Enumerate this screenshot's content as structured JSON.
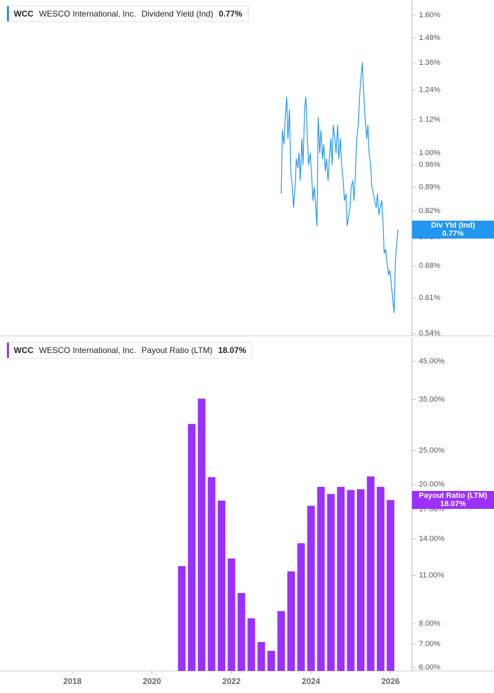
{
  "chart_data": [
    {
      "type": "line",
      "legend": {
        "ticker": "WCC",
        "company": "WESCO International, Inc.",
        "metric": "Dividend Yield (Ind)",
        "value": "0.77%"
      },
      "badge": {
        "label": "Div Yld (Ind)",
        "value": "0.77%"
      },
      "log_scale": true,
      "xlim": [
        2016.18,
        2026.54
      ],
      "ylim": [
        0.536,
        1.685
      ],
      "yticks": [
        {
          "value": 1.6,
          "label": "1.60%"
        },
        {
          "value": 1.48,
          "label": "1.48%"
        },
        {
          "value": 1.36,
          "label": "1.36%"
        },
        {
          "value": 1.24,
          "label": "1.24%"
        },
        {
          "value": 1.12,
          "label": "1.12%"
        },
        {
          "value": 1.0,
          "label": "1.00%"
        },
        {
          "value": 0.96,
          "label": "0.96%"
        },
        {
          "value": 0.89,
          "label": "0.89%"
        },
        {
          "value": 0.82,
          "label": "0.82%"
        },
        {
          "value": 0.75,
          "label": "0.75%"
        },
        {
          "value": 0.68,
          "label": "0.68%"
        },
        {
          "value": 0.61,
          "label": "0.61%"
        },
        {
          "value": 0.54,
          "label": "0.54%"
        }
      ],
      "x": [
        2023.25,
        2023.28,
        2023.32,
        2023.35,
        2023.39,
        2023.42,
        2023.46,
        2023.49,
        2023.53,
        2023.56,
        2023.6,
        2023.63,
        2023.67,
        2023.7,
        2023.73,
        2023.77,
        2023.8,
        2023.84,
        2023.87,
        2023.91,
        2023.94,
        2023.98,
        2024.01,
        2024.05,
        2024.08,
        2024.12,
        2024.15,
        2024.18,
        2024.22,
        2024.25,
        2024.29,
        2024.32,
        2024.36,
        2024.39,
        2024.43,
        2024.46,
        2024.5,
        2024.53,
        2024.56,
        2024.6,
        2024.63,
        2024.67,
        2024.7,
        2024.74,
        2024.77,
        2024.81,
        2024.84,
        2024.88,
        2024.91,
        2024.95,
        2024.98,
        2025.01,
        2025.05,
        2025.08,
        2025.12,
        2025.15,
        2025.19,
        2025.22,
        2025.26,
        2025.29,
        2025.33,
        2025.36,
        2025.4,
        2025.43,
        2025.46,
        2025.5,
        2025.53,
        2025.57,
        2025.6,
        2025.64,
        2025.67,
        2025.71,
        2025.74,
        2025.78,
        2025.81,
        2025.84,
        2025.88,
        2025.91,
        2025.95,
        2025.98,
        2026.02,
        2026.05,
        2026.09,
        2026.12,
        2026.16,
        2026.19
      ],
      "series": [
        {
          "name": "Div Yld (Ind)",
          "color": "#2196f3",
          "values": [
            0.87,
            1.08,
            1.03,
            1.12,
            1.21,
            1.05,
            1.16,
            0.94,
            0.89,
            0.83,
            0.89,
            0.98,
            0.95,
            1.0,
            0.91,
            1.05,
            0.96,
            1.16,
            1.21,
            1.05,
            0.96,
            1.0,
            0.94,
            0.85,
            0.89,
            0.83,
            0.78,
            1.13,
            1.0,
            1.08,
            0.98,
            1.03,
            0.94,
            0.98,
            0.91,
            0.98,
            1.05,
            0.96,
            1.1,
            1.05,
            1.0,
            1.1,
            0.98,
            1.05,
            0.96,
            0.91,
            0.85,
            0.87,
            0.78,
            0.81,
            0.83,
            0.89,
            0.91,
            0.85,
            0.94,
            1.05,
            1.1,
            1.21,
            1.3,
            1.36,
            1.21,
            1.13,
            1.05,
            1.1,
            1.0,
            0.96,
            0.89,
            0.87,
            0.85,
            0.83,
            0.87,
            0.81,
            0.83,
            0.85,
            0.79,
            0.71,
            0.72,
            0.69,
            0.66,
            0.67,
            0.64,
            0.61,
            0.58,
            0.69,
            0.74,
            0.77
          ]
        }
      ]
    },
    {
      "type": "bar",
      "legend": {
        "ticker": "WCC",
        "company": "WESCO International, Inc.",
        "metric": "Payout Ratio (LTM)",
        "value": "18.07%"
      },
      "badge": {
        "label": "Payout Ratio (LTM)",
        "value": "18.07%"
      },
      "log_scale": true,
      "xlim": [
        2016.18,
        2026.54
      ],
      "xticks": [
        2018,
        2020,
        2022,
        2024,
        2026
      ],
      "ylim": [
        5.87,
        52.5
      ],
      "yticks": [
        {
          "value": 45,
          "label": "45.00%"
        },
        {
          "value": 35,
          "label": "35.00%"
        },
        {
          "value": 25,
          "label": "25.00%"
        },
        {
          "value": 20,
          "label": "20.00%"
        },
        {
          "value": 17,
          "label": "17.00%"
        },
        {
          "value": 14,
          "label": "14.00%"
        },
        {
          "value": 11,
          "label": "11.00%"
        },
        {
          "value": 8,
          "label": "8.00%"
        },
        {
          "value": 7,
          "label": "7.00%"
        },
        {
          "value": 6,
          "label": "6.00%"
        }
      ],
      "x": [
        2020.75,
        2021.0,
        2021.25,
        2021.5,
        2021.75,
        2022.0,
        2022.25,
        2022.5,
        2022.75,
        2023.0,
        2023.25,
        2023.5,
        2023.75,
        2024.0,
        2024.25,
        2024.5,
        2024.75,
        2025.0,
        2025.25,
        2025.5,
        2025.75,
        2026.0
      ],
      "series": [
        {
          "name": "Payout Ratio (LTM)",
          "color": "#9b30ff",
          "values": [
            11.7,
            29.8,
            35.2,
            21.0,
            18.0,
            12.3,
            9.8,
            8.3,
            7.1,
            6.7,
            8.7,
            11.3,
            13.6,
            17.4,
            19.7,
            18.8,
            19.7,
            19.3,
            19.4,
            21.1,
            19.7,
            18.07
          ]
        }
      ]
    }
  ]
}
